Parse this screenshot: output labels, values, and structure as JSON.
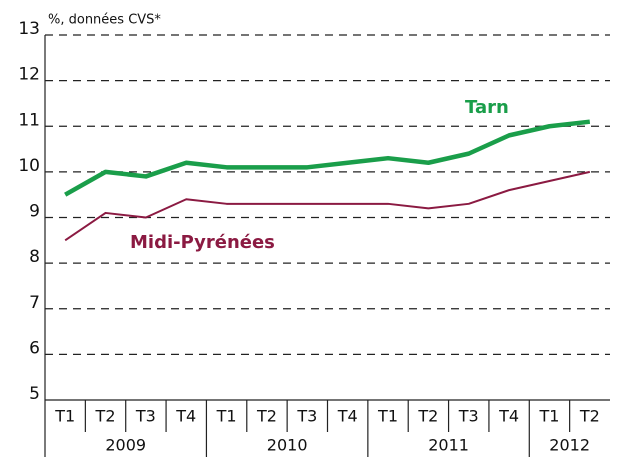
{
  "chart_data": {
    "type": "line",
    "y_unit_label": "%, données CVS*",
    "categories": [
      "T1",
      "T2",
      "T3",
      "T4",
      "T1",
      "T2",
      "T3",
      "T4",
      "T1",
      "T2",
      "T3",
      "T4",
      "T1",
      "T2"
    ],
    "groups": [
      {
        "label": "2009",
        "span": 4
      },
      {
        "label": "2010",
        "span": 4
      },
      {
        "label": "2011",
        "span": 4
      },
      {
        "label": "2012",
        "span": 2
      }
    ],
    "series": [
      {
        "name": "Tarn",
        "color": "#1a9e4a",
        "width": 4.5,
        "values": [
          9.5,
          10.0,
          9.9,
          10.2,
          10.1,
          10.1,
          10.1,
          10.2,
          10.3,
          10.2,
          10.4,
          10.8,
          11.0,
          11.1
        ]
      },
      {
        "name": "Midi-Pyrénées",
        "color": "#8b1a42",
        "width": 2,
        "values": [
          8.5,
          9.1,
          9.0,
          9.4,
          9.3,
          9.3,
          9.3,
          9.3,
          9.3,
          9.2,
          9.3,
          9.6,
          9.8,
          10.0
        ]
      }
    ],
    "ylim": [
      5,
      13
    ],
    "yticks": [
      5,
      6,
      7,
      8,
      9,
      10,
      11,
      12,
      13
    ],
    "grid": true
  }
}
